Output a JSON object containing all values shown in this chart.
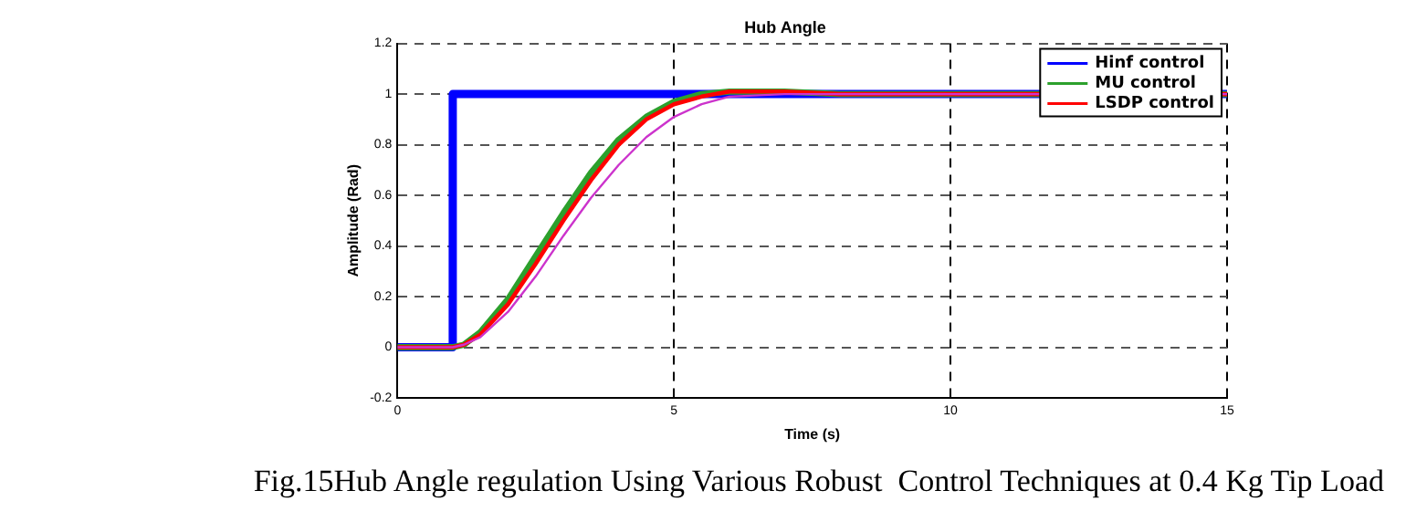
{
  "chart_data": {
    "type": "line",
    "title": "Hub Angle",
    "xlabel": "Time (s)",
    "ylabel": "Amplitude (Rad)",
    "x": [
      0,
      1,
      1.2,
      1.5,
      2,
      2.5,
      3,
      3.5,
      4,
      4.5,
      5,
      5.5,
      6,
      7,
      8,
      10,
      15
    ],
    "series": [
      {
        "name": "Hinf control",
        "color": "#0000ff",
        "x": [
          0,
          1,
          1,
          15
        ],
        "values": [
          0,
          0,
          1,
          1
        ]
      },
      {
        "name": "MU control",
        "color": "#2ca02c",
        "values": [
          0,
          0,
          0.01,
          0.06,
          0.19,
          0.36,
          0.53,
          0.69,
          0.82,
          0.91,
          0.97,
          1.0,
          1.01,
          1.01,
          1.0,
          1.0,
          1.0
        ]
      },
      {
        "name": "LSDP control",
        "color": "#ff0000",
        "values": [
          0,
          0,
          0.01,
          0.05,
          0.17,
          0.33,
          0.5,
          0.66,
          0.8,
          0.9,
          0.96,
          0.99,
          1.01,
          1.01,
          1.0,
          1.0,
          1.0
        ]
      },
      {
        "color": "#cc33cc",
        "values": [
          0,
          0,
          0.01,
          0.04,
          0.14,
          0.28,
          0.44,
          0.59,
          0.72,
          0.83,
          0.91,
          0.96,
          0.99,
          1.0,
          1.0,
          1.0,
          1.0
        ]
      }
    ],
    "xlim": [
      0,
      15
    ],
    "xticks": [
      0,
      5,
      10,
      15
    ],
    "ylim": [
      -0.2,
      1.2
    ],
    "yticks": [
      -0.2,
      0,
      0.2,
      0.4,
      0.6,
      0.8,
      1,
      1.2
    ],
    "grid": true,
    "legend": "top right",
    "marker": "none",
    "line_style": "solid",
    "annotations": [
      "Fig.15Hub Angle regulation Using Various Robust  Control Techniques at 0.4 Kg Tip Load"
    ]
  }
}
